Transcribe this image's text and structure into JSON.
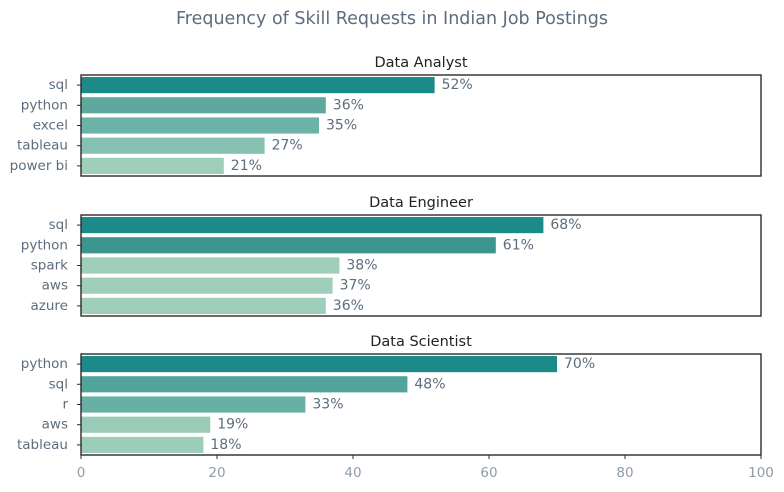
{
  "chart_data": {
    "type": "bar",
    "orientation": "horizontal",
    "title": "Frequency of Skill Requests in Indian Job Postings",
    "xlim": [
      0,
      100
    ],
    "xticks": [
      "0",
      "20",
      "40",
      "60",
      "80",
      "100"
    ],
    "value_suffix": "%",
    "panels": [
      {
        "title": "Data Analyst",
        "categories": [
          "sql",
          "python",
          "excel",
          "tableau",
          "power bi"
        ],
        "values": [
          52,
          36,
          35,
          27,
          21
        ],
        "colors": [
          "#1d8a8a",
          "#5fa89e",
          "#6ab3a6",
          "#85c0b0",
          "#9fceba"
        ]
      },
      {
        "title": "Data Engineer",
        "categories": [
          "sql",
          "python",
          "spark",
          "aws",
          "azure"
        ],
        "values": [
          68,
          61,
          38,
          37,
          36
        ],
        "colors": [
          "#1d8a8a",
          "#3b958e",
          "#9fcebb",
          "#9fcebb",
          "#9fcebb"
        ]
      },
      {
        "title": "Data Scientist",
        "categories": [
          "python",
          "sql",
          "r",
          "aws",
          "tableau"
        ],
        "values": [
          70,
          48,
          33,
          19,
          18
        ],
        "colors": [
          "#1d8a8a",
          "#52a39b",
          "#67b0a3",
          "#9acbb8",
          "#9ccdb9"
        ]
      }
    ]
  }
}
